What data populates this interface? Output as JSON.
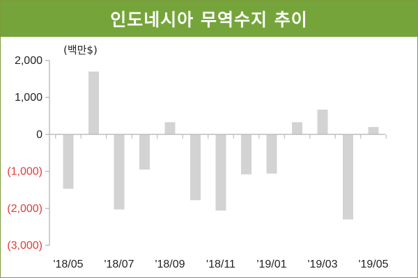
{
  "title": "인도네시아 무역수지 추이",
  "chart_data": {
    "type": "bar",
    "title": "인도네시아 무역수지 추이",
    "unit_label": "(백만$)",
    "categories": [
      "'18/05",
      "'18/06",
      "'18/07",
      "'18/08",
      "'18/09",
      "'18/10",
      "'18/11",
      "'18/12",
      "'19/01",
      "'19/02",
      "'19/03",
      "'19/04",
      "'19/05"
    ],
    "values": [
      -1470,
      1700,
      -2030,
      -950,
      330,
      -1780,
      -2060,
      -1080,
      -1060,
      330,
      670,
      -2300,
      200
    ],
    "x_tick_labels": [
      "'18/05",
      "'18/07",
      "'18/09",
      "'18/11",
      "'19/01",
      "'19/03",
      "'19/05"
    ],
    "y_ticks": [
      2000,
      1000,
      0,
      -1000,
      -2000,
      -3000
    ],
    "y_tick_labels": [
      "2,000",
      "1,000",
      "0",
      "(1,000)",
      "(2,000)",
      "(3,000)"
    ],
    "ylim": [
      -3000,
      2000
    ],
    "grid": false,
    "colors": {
      "bar": "#d3d3d3",
      "axis": "#bdbdbd",
      "negative_label": "#e03a3a",
      "title_bg": "#75a53a"
    }
  }
}
